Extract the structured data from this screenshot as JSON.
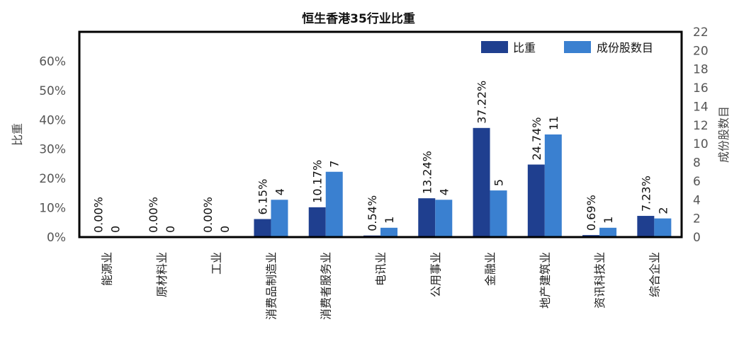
{
  "chart_data": {
    "type": "bar",
    "title": "恒生香港35行业比重",
    "categories": [
      "能源业",
      "原材料业",
      "工业",
      "消费品制造业",
      "消费者服务业",
      "电讯业",
      "公用事业",
      "金融业",
      "地产建筑业",
      "资讯科技业",
      "综合企业"
    ],
    "series": [
      {
        "name": "比重",
        "axis": "left",
        "color": "#1f3f8f",
        "values": [
          0.0,
          0.0,
          0.0,
          6.15,
          10.17,
          0.54,
          13.24,
          37.22,
          24.74,
          0.69,
          7.23
        ],
        "labels": [
          "0.00%",
          "0.00%",
          "0.00%",
          "6.15%",
          "10.17%",
          "0.54%",
          "13.24%",
          "37.22%",
          "24.74%",
          "0.69%",
          "7.23%"
        ]
      },
      {
        "name": "成份股数目",
        "axis": "right",
        "color": "#3a80d0",
        "values": [
          0,
          0,
          0,
          4,
          7,
          1,
          4,
          5,
          11,
          1,
          2
        ],
        "labels": [
          "0",
          "0",
          "0",
          "4",
          "7",
          "1",
          "4",
          "5",
          "11",
          "1",
          "2"
        ]
      }
    ],
    "ylabel": "比重",
    "y2label": "成份股数目",
    "ylim": [
      0,
      70
    ],
    "y2lim": [
      0,
      22
    ],
    "yticks": [
      "0%",
      "10%",
      "20%",
      "30%",
      "40%",
      "50%",
      "60%"
    ],
    "y2ticks": [
      "0",
      "2",
      "4",
      "6",
      "8",
      "10",
      "12",
      "14",
      "16",
      "18",
      "20",
      "22"
    ],
    "legend": "top-right",
    "grid": false
  }
}
